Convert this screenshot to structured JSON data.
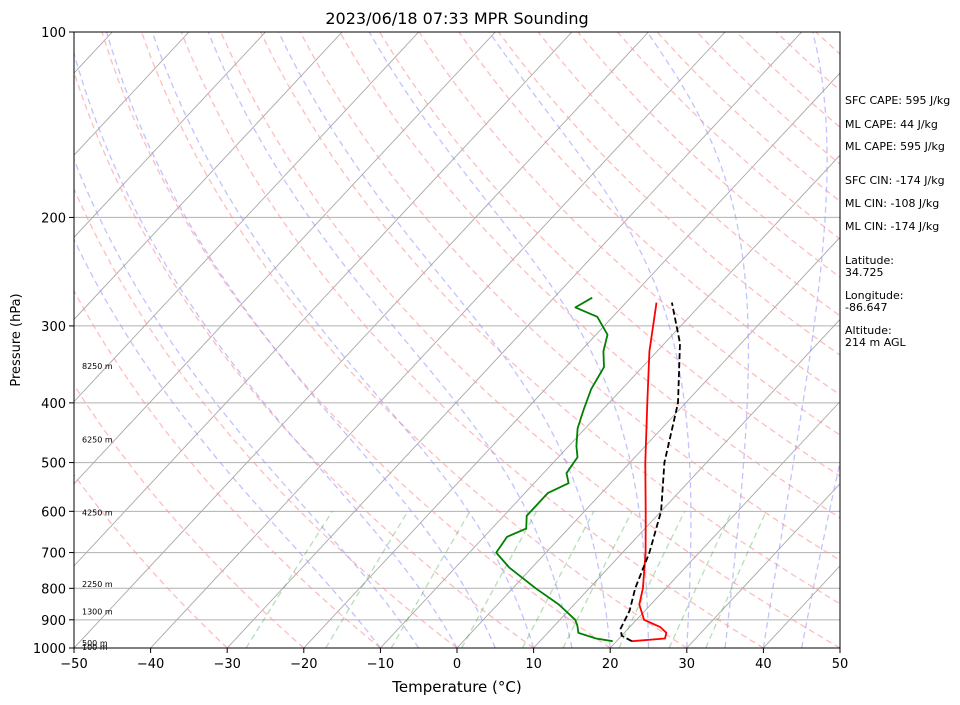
{
  "chart_data": {
    "type": "line",
    "title": "2023/06/18 07:33 MPR Sounding",
    "xlabel": "Temperature (°C)",
    "ylabel": "Pressure (hPa)",
    "xlim": [
      -50,
      50
    ],
    "ylim": [
      1000,
      100
    ],
    "yscale": "log",
    "xticks": [
      -50,
      -40,
      -30,
      -20,
      -10,
      0,
      10,
      20,
      30,
      40,
      50
    ],
    "xtick_labels": [
      "−50",
      "−40",
      "−30",
      "−20",
      "−10",
      "0",
      "10",
      "20",
      "30",
      "40",
      "50"
    ],
    "yticks": [
      1000,
      900,
      800,
      700,
      600,
      500,
      400,
      300,
      200,
      100
    ],
    "ytick_labels": [
      "1000",
      "900",
      "800",
      "700",
      "600",
      "500",
      "400",
      "300",
      "200",
      "100"
    ],
    "skew": true,
    "grid": "horizontal isobars",
    "series": [
      {
        "color": "#ff0000",
        "style": "solid",
        "points": [
          [
            22,
            975
          ],
          [
            26,
            965
          ],
          [
            25.5,
            945
          ],
          [
            24,
            925
          ],
          [
            21,
            900
          ],
          [
            18.5,
            850
          ],
          [
            17,
            800
          ],
          [
            13,
            700
          ],
          [
            8,
            600
          ],
          [
            2,
            500
          ],
          [
            -5,
            400
          ],
          [
            -11,
            330
          ],
          [
            -16,
            275
          ]
        ]
      },
      {
        "color": "#008000",
        "style": "solid",
        "points": [
          [
            19.5,
            975
          ],
          [
            17,
            965
          ],
          [
            14,
            945
          ],
          [
            13,
            920
          ],
          [
            12,
            900
          ],
          [
            8,
            850
          ],
          [
            3,
            800
          ],
          [
            -3,
            740
          ],
          [
            -6.5,
            700
          ],
          [
            -7,
            660
          ],
          [
            -5.5,
            640
          ],
          [
            -7,
            610
          ],
          [
            -7,
            580
          ],
          [
            -7,
            560
          ],
          [
            -5.5,
            540
          ],
          [
            -7,
            520
          ],
          [
            -7.5,
            490
          ],
          [
            -9,
            470
          ],
          [
            -11,
            440
          ],
          [
            -12.5,
            410
          ],
          [
            -14,
            380
          ],
          [
            -15,
            350
          ],
          [
            -17,
            330
          ],
          [
            -18.5,
            310
          ],
          [
            -22,
            290
          ],
          [
            -26,
            280
          ],
          [
            -25,
            270
          ]
        ]
      },
      {
        "color": "#000000",
        "style": "dashed",
        "points": [
          [
            22,
            975
          ],
          [
            20,
            955
          ],
          [
            19,
            930
          ],
          [
            18,
            870
          ],
          [
            16,
            800
          ],
          [
            13.5,
            700
          ],
          [
            10,
            600
          ],
          [
            4.5,
            500
          ],
          [
            -1,
            400
          ],
          [
            -8,
            320
          ],
          [
            -14,
            275
          ]
        ]
      }
    ],
    "isotherms_c": [
      -150,
      -140,
      -130,
      -120,
      -110,
      -100,
      -90,
      -80,
      -70,
      -60,
      -50,
      -40,
      -30,
      -20,
      -10,
      0,
      10,
      20,
      30,
      40,
      50
    ],
    "dry_adiabats_theta_c": [
      -30,
      -20,
      -10,
      0,
      10,
      20,
      30,
      40,
      50,
      60,
      70,
      80,
      90,
      100,
      110,
      120,
      130,
      140,
      150,
      160,
      170,
      180,
      190,
      200
    ],
    "moist_adiabat_start_c": [
      -10,
      -5,
      0,
      5,
      10,
      15,
      20,
      25,
      30,
      35,
      40,
      45
    ],
    "mixing_ratio_gkg": [
      0.4,
      1,
      2,
      4,
      7,
      10,
      16,
      24,
      32
    ],
    "height_labels": [
      {
        "p": 1000,
        "text": "100 m"
      },
      {
        "p": 985,
        "text": "500 m"
      },
      {
        "p": 875,
        "text": "1300 m"
      },
      {
        "p": 790,
        "text": "2250 m"
      },
      {
        "p": 605,
        "text": "4250 m"
      },
      {
        "p": 460,
        "text": "6250 m"
      },
      {
        "p": 350,
        "text": "8250 m"
      }
    ]
  },
  "info": {
    "sfc_cape": "SFC CAPE: 595 J/kg",
    "ml_cape_1": "ML CAPE: 44 J/kg",
    "ml_cape_2": "ML CAPE: 595 J/kg",
    "sfc_cin": "SFC CIN: -174 J/kg",
    "ml_cin_1": "ML CIN: -108 J/kg",
    "ml_cin_2": "ML CIN: -174 J/kg",
    "latitude": "Latitude:\n34.725",
    "longitude": "Longitude:\n-86.647",
    "altitude": "Altitude:\n214 m AGL"
  }
}
